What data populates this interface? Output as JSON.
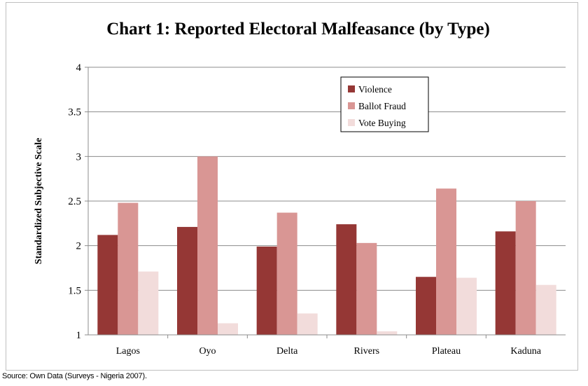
{
  "chart_data": {
    "type": "bar",
    "title": "Chart 1: Reported Electoral Malfeasance (by Type)",
    "xlabel": "",
    "ylabel": "Standardized Subjective Scale",
    "ylim": [
      1,
      4
    ],
    "yticks": [
      "1",
      "1.5",
      "2",
      "2.5",
      "3",
      "3.5",
      "4"
    ],
    "grid": true,
    "legend_position": "top-center",
    "categories": [
      "Lagos",
      "Oyo",
      "Delta",
      "Rivers",
      "Plateau",
      "Kaduna"
    ],
    "series": [
      {
        "name": "Violence",
        "color": "#953735",
        "values": [
          2.12,
          2.21,
          1.99,
          2.24,
          1.65,
          2.16
        ]
      },
      {
        "name": "Ballot Fraud",
        "color": "#d99694",
        "values": [
          2.48,
          3.0,
          2.37,
          2.03,
          2.64,
          2.5
        ]
      },
      {
        "name": "Vote Buying",
        "color": "#f2dcdb",
        "values": [
          1.71,
          1.13,
          1.24,
          1.04,
          1.64,
          1.56
        ]
      }
    ]
  },
  "source_note": "Source: Own Data (Surveys - Nigeria 2007)."
}
